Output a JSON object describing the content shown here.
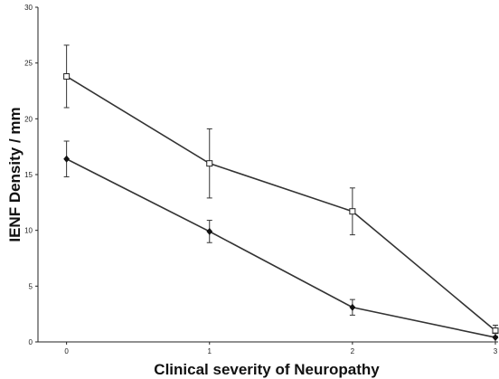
{
  "chart_data": {
    "type": "line",
    "title": "",
    "xlabel": "Clinical severity of Neuropathy",
    "ylabel": "IENF Density / mm",
    "xlim": [
      -0.2,
      3
    ],
    "ylim": [
      0,
      30
    ],
    "xticks": [
      0,
      1,
      2,
      3
    ],
    "yticks": [
      0,
      5,
      10,
      15,
      20,
      25,
      30
    ],
    "grid": false,
    "legend": "none",
    "series": [
      {
        "marker": "open-square",
        "color": "#333333",
        "x": [
          0,
          1,
          2,
          3
        ],
        "values": [
          23.8,
          16.0,
          11.7,
          1.0
        ],
        "error": [
          2.8,
          3.1,
          2.1,
          0.5
        ]
      },
      {
        "marker": "filled-diamond",
        "color": "#333333",
        "x": [
          0,
          1,
          2,
          3
        ],
        "values": [
          16.4,
          9.9,
          3.1,
          0.4
        ],
        "error": [
          1.6,
          1.0,
          0.7,
          0.4
        ]
      }
    ]
  }
}
